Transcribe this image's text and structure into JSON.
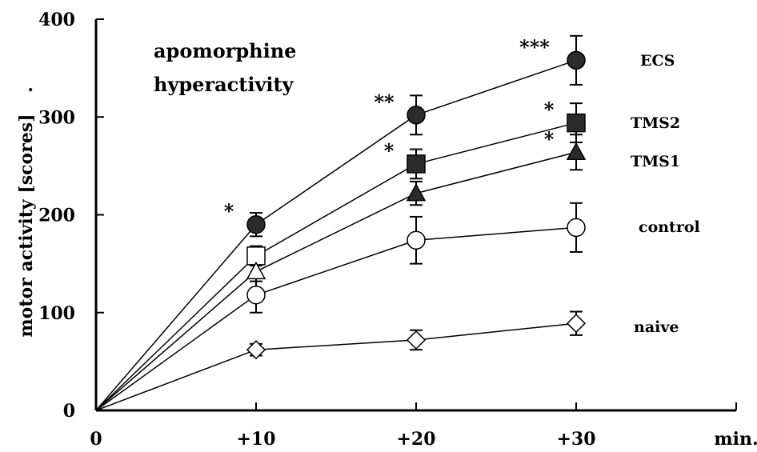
{
  "chart_data": {
    "type": "line",
    "title": "apomorphine hyperactivity",
    "title_lines": [
      "apomorphine",
      "hyperactivity"
    ],
    "xlabel": "min.",
    "ylabel": "motor activity [scores]",
    "ylabel_mark": ".",
    "x": [
      0,
      10,
      20,
      30
    ],
    "xtick_labels": [
      "0",
      "+10",
      "+20",
      "+30",
      "min."
    ],
    "yticks": [
      0,
      100,
      200,
      300,
      400
    ],
    "xlim": [
      0,
      40
    ],
    "ylim": [
      0,
      400
    ],
    "grid": false,
    "legend": "labels at right end of each series",
    "series": [
      {
        "name": "ECS",
        "marker": "circle",
        "filled": true,
        "values": [
          0,
          190,
          302,
          358
        ],
        "errors": [
          0,
          12,
          20,
          25
        ],
        "significance": [
          "",
          "*",
          "**",
          "***"
        ]
      },
      {
        "name": "TMS2",
        "marker": "square",
        "filled": true,
        "values": [
          0,
          158,
          252,
          294
        ],
        "errors": [
          0,
          10,
          15,
          20
        ],
        "significance": [
          "",
          "",
          "*",
          "*"
        ]
      },
      {
        "name": "TMS1",
        "marker": "triangle",
        "filled": true,
        "values": [
          0,
          142,
          222,
          264
        ],
        "errors": [
          0,
          10,
          12,
          18
        ],
        "significance": [
          "",
          "",
          "",
          "*"
        ]
      },
      {
        "name": "control",
        "marker": "circle",
        "filled": false,
        "values": [
          0,
          118,
          174,
          187
        ],
        "errors": [
          0,
          18,
          24,
          25
        ],
        "significance": [
          "",
          "",
          "",
          ""
        ]
      },
      {
        "name": "naive",
        "marker": "diamond",
        "filled": false,
        "values": [
          0,
          62,
          72,
          89
        ],
        "errors": [
          0,
          6,
          10,
          12
        ],
        "significance": [
          "",
          "",
          "",
          ""
        ]
      }
    ],
    "first_point_open": [
      "TMS2",
      "TMS1"
    ]
  }
}
